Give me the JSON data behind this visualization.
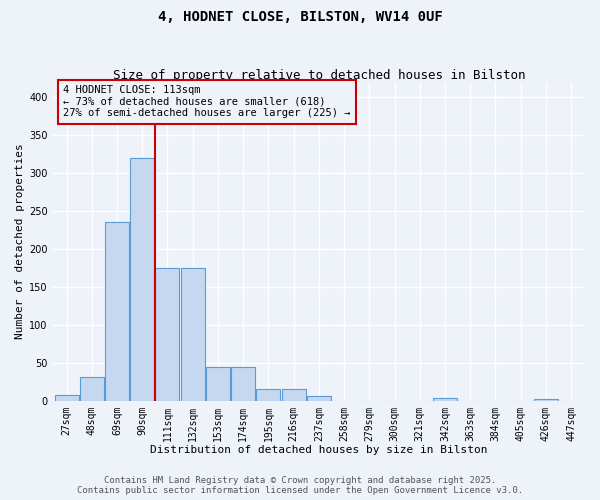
{
  "title_line1": "4, HODNET CLOSE, BILSTON, WV14 0UF",
  "title_line2": "Size of property relative to detached houses in Bilston",
  "xlabel": "Distribution of detached houses by size in Bilston",
  "ylabel": "Number of detached properties",
  "categories": [
    "27sqm",
    "48sqm",
    "69sqm",
    "90sqm",
    "111sqm",
    "132sqm",
    "153sqm",
    "174sqm",
    "195sqm",
    "216sqm",
    "237sqm",
    "258sqm",
    "279sqm",
    "300sqm",
    "321sqm",
    "342sqm",
    "363sqm",
    "384sqm",
    "405sqm",
    "426sqm",
    "447sqm"
  ],
  "values": [
    8,
    31,
    236,
    320,
    175,
    175,
    44,
    44,
    15,
    15,
    6,
    0,
    0,
    0,
    0,
    3,
    0,
    0,
    0,
    2,
    0
  ],
  "bar_color": "#c5d8f0",
  "bar_edge_color": "#5b9bd5",
  "bar_edge_width": 0.8,
  "vline_x_index": 3.5,
  "vline_color": "#cc0000",
  "annotation_text": "4 HODNET CLOSE: 113sqm\n← 73% of detached houses are smaller (618)\n27% of semi-detached houses are larger (225) →",
  "annotation_box_color": "#cc0000",
  "ylim": [
    0,
    420
  ],
  "yticks": [
    0,
    50,
    100,
    150,
    200,
    250,
    300,
    350,
    400
  ],
  "footer_line1": "Contains HM Land Registry data © Crown copyright and database right 2025.",
  "footer_line2": "Contains public sector information licensed under the Open Government Licence v3.0.",
  "bg_color": "#eef2f9",
  "grid_color": "#ffffff",
  "title_fontsize": 10,
  "subtitle_fontsize": 9,
  "axis_label_fontsize": 8,
  "tick_fontsize": 7,
  "annotation_fontsize": 7.5,
  "footer_fontsize": 6.5
}
